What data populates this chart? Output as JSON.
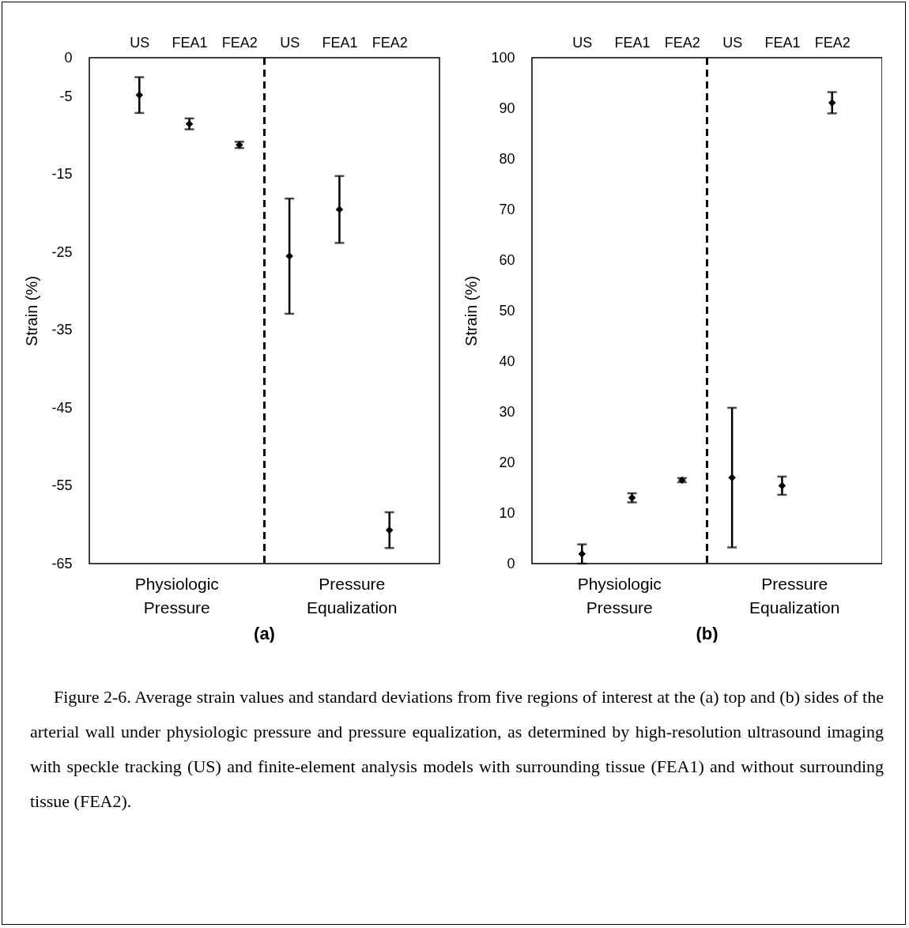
{
  "chart_data": [
    {
      "type": "scatter",
      "title": "(a)",
      "ylabel": "Strain (%)",
      "categories": [
        "US",
        "FEA1",
        "FEA2",
        "US",
        "FEA1",
        "FEA2"
      ],
      "ylim": [
        -65,
        0
      ],
      "yticks": [
        0,
        -5,
        -15,
        -25,
        -35,
        -45,
        -55,
        -65
      ],
      "series": [
        {
          "color": "#000000",
          "values": [
            -4.8,
            -8.5,
            -11.2,
            -25.5,
            -19.5,
            -60.7
          ],
          "errors": [
            2.3,
            0.7,
            0.4,
            7.4,
            4.3,
            2.3
          ]
        }
      ],
      "marker": "diamond",
      "grid": false,
      "annotations": [
        "Physiologic Pressure",
        "Pressure Equalization"
      ]
    },
    {
      "type": "scatter",
      "title": "(b)",
      "ylabel": "Strain (%)",
      "categories": [
        "US",
        "FEA1",
        "FEA2",
        "US",
        "FEA1",
        "FEA2"
      ],
      "ylim": [
        0,
        100
      ],
      "yticks": [
        0,
        10,
        20,
        30,
        40,
        50,
        60,
        70,
        80,
        90,
        100
      ],
      "series": [
        {
          "color": "#000000",
          "values": [
            1.9,
            13.0,
            16.5,
            17.0,
            15.4,
            91.1
          ],
          "errors": [
            1.9,
            0.9,
            0.4,
            13.8,
            1.8,
            2.1
          ]
        }
      ],
      "marker": "diamond",
      "grid": false,
      "annotations": [
        "Physiologic Pressure",
        "Pressure Equalization",
        "Figure 2-6. Average strain values and standard deviations from five regions of interest at the (a) top and (b) sides of the arterial wall under physiologic pressure and pressure equalization, as determined by high-resolution ultrasound imaging with speckle tracking (US) and finite-element analysis models with surrounding tissue (FEA1) and without surrounding tissue (FEA2)."
      ]
    }
  ]
}
